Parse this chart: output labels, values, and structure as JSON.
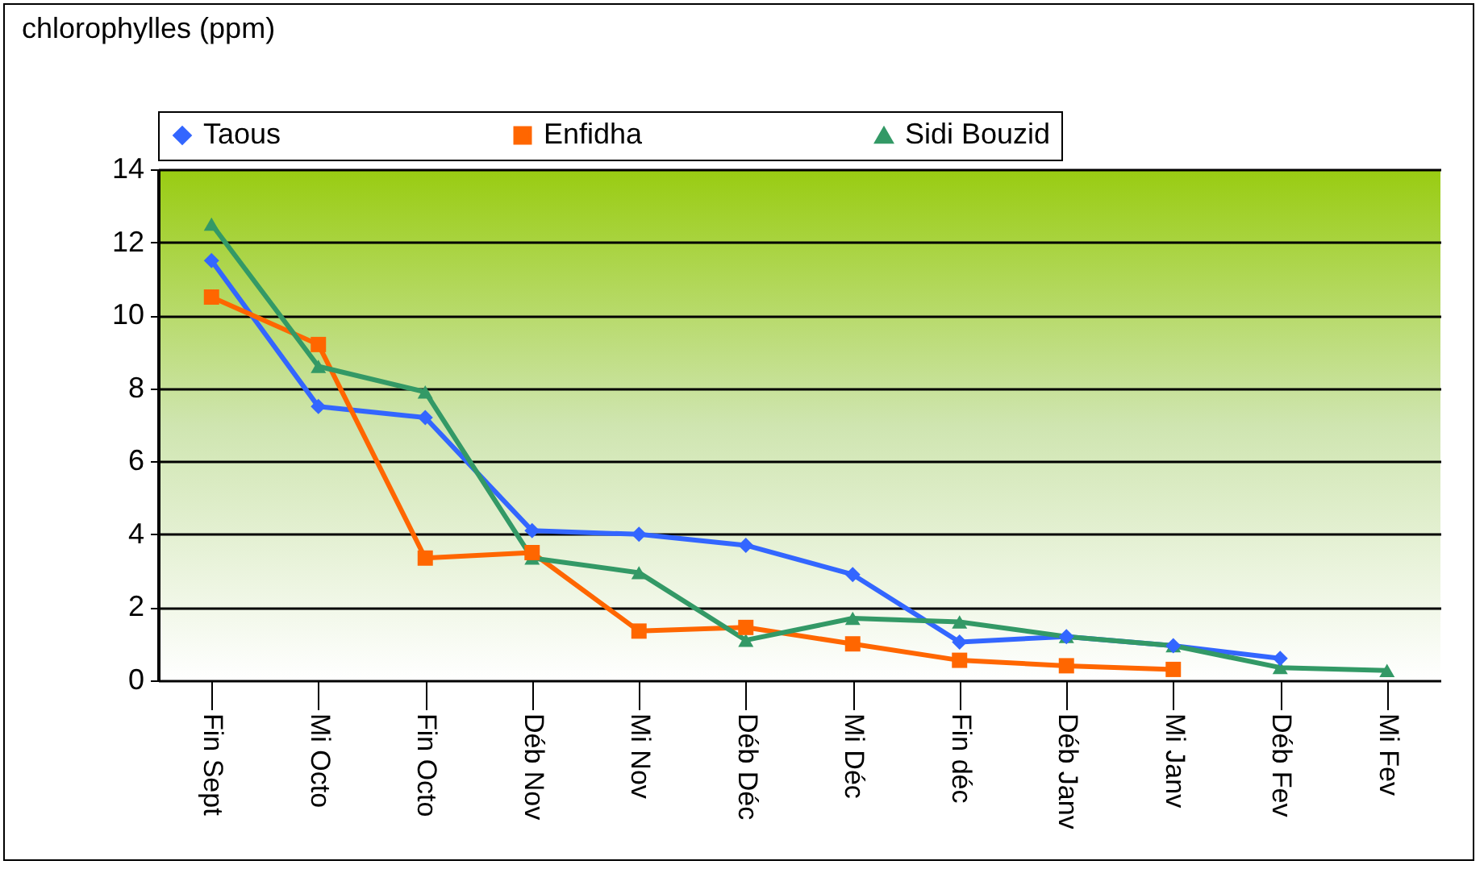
{
  "chart_data": {
    "type": "line",
    "ylabel": "chlorophylles (ppm)",
    "categories": [
      "Fin Sept",
      "Mi Octo",
      "Fin Octo",
      "Déb Nov",
      "Mi Nov",
      "Déb Déc",
      "Mi Déc",
      "Fin déc",
      "Déb Janv",
      "Mi Janv",
      "Déb Fev",
      "Mi Fev"
    ],
    "series": [
      {
        "name": "Taous",
        "color": "#3366ff",
        "marker": "diamond",
        "values": [
          11.5,
          7.5,
          7.2,
          4.1,
          4.0,
          3.7,
          2.9,
          1.05,
          1.2,
          0.95,
          0.6,
          null
        ]
      },
      {
        "name": "Enfidha",
        "color": "#ff6600",
        "marker": "square",
        "values": [
          10.5,
          9.2,
          3.35,
          3.5,
          1.35,
          1.45,
          1.0,
          0.55,
          0.4,
          0.3,
          null,
          null
        ]
      },
      {
        "name": "Sidi Bouzid",
        "color": "#339966",
        "marker": "triangle",
        "values": [
          12.5,
          8.6,
          7.9,
          3.35,
          2.95,
          1.1,
          1.7,
          1.6,
          1.2,
          0.95,
          0.35,
          0.27
        ]
      }
    ],
    "ylim": [
      0,
      14
    ],
    "yticks": [
      0,
      2,
      4,
      6,
      8,
      10,
      12,
      14
    ],
    "grid": "y",
    "legend": "top"
  }
}
